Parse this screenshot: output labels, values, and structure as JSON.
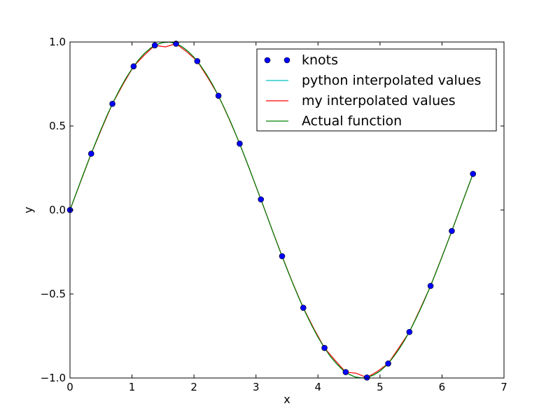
{
  "chart_data": {
    "type": "line",
    "title": "",
    "xlabel": "x",
    "ylabel": "y",
    "xlim": [
      0,
      7
    ],
    "ylim": [
      -1.0,
      1.0
    ],
    "xticks": [
      0,
      1,
      2,
      3,
      4,
      5,
      6,
      7
    ],
    "xtick_labels": [
      "0",
      "1",
      "2",
      "3",
      "4",
      "5",
      "6",
      "7"
    ],
    "yticks": [
      1.0,
      0.5,
      0.0,
      -0.5,
      -1.0
    ],
    "ytick_labels": [
      "1.0",
      "0.5",
      "0.0",
      "−0.5",
      "−1.0"
    ],
    "grid": false,
    "legend_position": "top-right",
    "series": [
      {
        "name": "knots",
        "style": "markers",
        "color": "#0000ff",
        "x": [
          0.0,
          0.342,
          0.684,
          1.026,
          1.368,
          1.71,
          2.053,
          2.395,
          2.737,
          3.079,
          3.421,
          3.763,
          4.105,
          4.447,
          4.789,
          5.132,
          5.474,
          5.816,
          6.158,
          6.5
        ],
        "y": [
          0.0,
          0.335,
          0.632,
          0.855,
          0.98,
          0.99,
          0.886,
          0.68,
          0.395,
          0.063,
          -0.275,
          -0.582,
          -0.821,
          -0.965,
          -0.997,
          -0.914,
          -0.726,
          -0.452,
          -0.125,
          0.215
        ]
      },
      {
        "name": "python interpolated values",
        "style": "line",
        "color": "#00bfbf",
        "x": [
          0.0,
          0.1,
          0.2,
          0.3,
          0.4,
          0.5,
          0.6,
          0.7,
          0.8,
          0.9,
          1.0,
          1.1,
          1.2,
          1.3,
          1.4,
          1.5,
          1.6,
          1.7,
          1.8,
          1.9,
          2.0,
          2.1,
          2.2,
          2.3,
          2.4,
          2.5,
          2.6,
          2.7,
          2.8,
          2.9,
          3.0,
          3.1,
          3.2,
          3.3,
          3.4,
          3.5,
          3.6,
          3.7,
          3.8,
          3.9,
          4.0,
          4.1,
          4.2,
          4.3,
          4.4,
          4.5,
          4.6,
          4.7,
          4.8,
          4.9,
          5.0,
          5.1,
          5.2,
          5.3,
          5.4,
          5.5,
          5.6,
          5.7,
          5.8,
          5.9,
          6.0,
          6.1,
          6.2,
          6.3,
          6.4,
          6.5
        ],
        "y": [
          0.0,
          0.1,
          0.199,
          0.296,
          0.389,
          0.479,
          0.565,
          0.644,
          0.717,
          0.783,
          0.841,
          0.891,
          0.932,
          0.964,
          0.985,
          0.997,
          1.0,
          0.992,
          0.974,
          0.946,
          0.909,
          0.863,
          0.808,
          0.746,
          0.675,
          0.598,
          0.516,
          0.427,
          0.335,
          0.239,
          0.141,
          0.042,
          -0.058,
          -0.158,
          -0.256,
          -0.351,
          -0.443,
          -0.53,
          -0.612,
          -0.688,
          -0.757,
          -0.818,
          -0.872,
          -0.916,
          -0.952,
          -0.978,
          -0.994,
          -1.0,
          -0.996,
          -0.982,
          -0.959,
          -0.926,
          -0.883,
          -0.832,
          -0.773,
          -0.706,
          -0.631,
          -0.551,
          -0.465,
          -0.374,
          -0.279,
          -0.182,
          -0.083,
          0.017,
          0.117,
          0.215
        ]
      },
      {
        "name": "my interpolated values",
        "style": "line",
        "color": "#ff0000",
        "x": [
          0.0,
          0.171,
          0.342,
          0.513,
          0.684,
          0.855,
          1.026,
          1.197,
          1.368,
          1.539,
          1.71,
          1.882,
          2.053,
          2.224,
          2.395,
          2.566,
          2.737,
          2.908,
          3.079,
          3.25,
          3.421,
          3.592,
          3.763,
          3.934,
          4.105,
          4.276,
          4.447,
          4.618,
          4.789,
          4.961,
          5.132,
          5.303,
          5.474,
          5.645,
          5.816,
          5.987,
          6.158,
          6.329,
          6.5
        ],
        "y": [
          0.0,
          0.168,
          0.335,
          0.486,
          0.632,
          0.748,
          0.855,
          0.921,
          0.98,
          0.971,
          0.99,
          0.942,
          0.886,
          0.787,
          0.68,
          0.542,
          0.395,
          0.23,
          0.063,
          -0.108,
          -0.275,
          -0.434,
          -0.582,
          -0.707,
          -0.821,
          -0.895,
          -0.965,
          -0.972,
          -0.997,
          -0.96,
          -0.914,
          -0.821,
          -0.726,
          -0.591,
          -0.452,
          -0.29,
          -0.125,
          0.046,
          0.215
        ]
      },
      {
        "name": "Actual function",
        "style": "line",
        "color": "#008000",
        "x": [
          0.0,
          0.1,
          0.2,
          0.3,
          0.4,
          0.5,
          0.6,
          0.7,
          0.8,
          0.9,
          1.0,
          1.1,
          1.2,
          1.3,
          1.4,
          1.5,
          1.6,
          1.7,
          1.8,
          1.9,
          2.0,
          2.1,
          2.2,
          2.3,
          2.4,
          2.5,
          2.6,
          2.7,
          2.8,
          2.9,
          3.0,
          3.1,
          3.2,
          3.3,
          3.4,
          3.5,
          3.6,
          3.7,
          3.8,
          3.9,
          4.0,
          4.1,
          4.2,
          4.3,
          4.4,
          4.5,
          4.6,
          4.7,
          4.8,
          4.9,
          5.0,
          5.1,
          5.2,
          5.3,
          5.4,
          5.5,
          5.6,
          5.7,
          5.8,
          5.9,
          6.0,
          6.1,
          6.2,
          6.3,
          6.4,
          6.5
        ],
        "y": [
          0.0,
          0.1,
          0.199,
          0.296,
          0.389,
          0.479,
          0.565,
          0.644,
          0.717,
          0.783,
          0.841,
          0.891,
          0.932,
          0.964,
          0.985,
          0.997,
          1.0,
          0.992,
          0.974,
          0.946,
          0.909,
          0.863,
          0.808,
          0.746,
          0.675,
          0.598,
          0.516,
          0.427,
          0.335,
          0.239,
          0.141,
          0.042,
          -0.058,
          -0.158,
          -0.256,
          -0.351,
          -0.443,
          -0.53,
          -0.612,
          -0.688,
          -0.757,
          -0.818,
          -0.872,
          -0.916,
          -0.952,
          -0.978,
          -0.994,
          -1.0,
          -0.996,
          -0.982,
          -0.959,
          -0.926,
          -0.883,
          -0.832,
          -0.773,
          -0.706,
          -0.631,
          -0.551,
          -0.465,
          -0.374,
          -0.279,
          -0.182,
          -0.083,
          0.017,
          0.117,
          0.215
        ]
      }
    ]
  }
}
